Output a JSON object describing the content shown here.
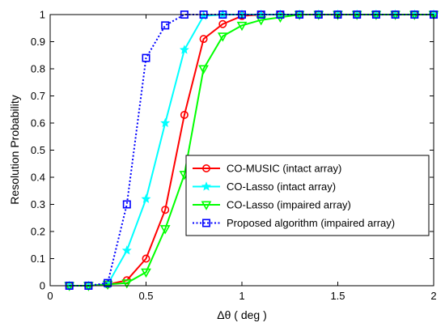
{
  "chart_data": {
    "type": "line",
    "xlabel": "Δθ ( deg )",
    "ylabel": "Resolution Probability",
    "xlim": [
      0,
      2
    ],
    "ylim": [
      0,
      1
    ],
    "x_ticks": [
      "0",
      "0.5",
      "1",
      "1.5",
      "2"
    ],
    "x_tick_values": [
      0,
      0.5,
      1,
      1.5,
      2
    ],
    "y_ticks": [
      "0",
      "0.1",
      "0.2",
      "0.3",
      "0.4",
      "0.5",
      "0.6",
      "0.7",
      "0.8",
      "0.9",
      "1"
    ],
    "y_tick_values": [
      0,
      0.1,
      0.2,
      0.3,
      0.4,
      0.5,
      0.6,
      0.7,
      0.8,
      0.9,
      1
    ],
    "grid": false,
    "legend_position": "right",
    "x": [
      0.1,
      0.2,
      0.3,
      0.4,
      0.5,
      0.6,
      0.7,
      0.8,
      0.9,
      1.0,
      1.1,
      1.2,
      1.3,
      1.4,
      1.5,
      1.6,
      1.7,
      1.8,
      1.9,
      2.0
    ],
    "series": [
      {
        "name": "CO-MUSIC (intact array)",
        "color": "#ff0000",
        "line_style": "solid",
        "marker": "circle",
        "values": [
          0,
          0,
          0.005,
          0.02,
          0.1,
          0.28,
          0.63,
          0.91,
          0.965,
          0.995,
          1,
          1,
          1,
          1,
          1,
          1,
          1,
          1,
          1,
          1
        ]
      },
      {
        "name": "CO-Lasso (intact array)",
        "color": "#00ffff",
        "line_style": "solid",
        "marker": "star",
        "values": [
          0,
          0,
          0.005,
          0.13,
          0.32,
          0.6,
          0.87,
          0.995,
          1,
          1,
          1,
          1,
          1,
          1,
          1,
          1,
          1,
          1,
          1,
          1
        ]
      },
      {
        "name": "CO-Lasso (impaired array)",
        "color": "#00ff00",
        "line_style": "solid",
        "marker": "triangle-down",
        "values": [
          0,
          0,
          0.005,
          0.01,
          0.05,
          0.21,
          0.41,
          0.8,
          0.92,
          0.96,
          0.98,
          0.99,
          1,
          1,
          1,
          1,
          1,
          1,
          1,
          1
        ]
      },
      {
        "name": "Proposed algorithm (impaired array)",
        "color": "#0000ff",
        "line_style": "dotted",
        "marker": "square",
        "values": [
          0,
          0,
          0.01,
          0.3,
          0.84,
          0.96,
          1,
          1,
          1,
          1,
          1,
          1,
          1,
          1,
          1,
          1,
          1,
          1,
          1,
          1
        ]
      }
    ]
  }
}
